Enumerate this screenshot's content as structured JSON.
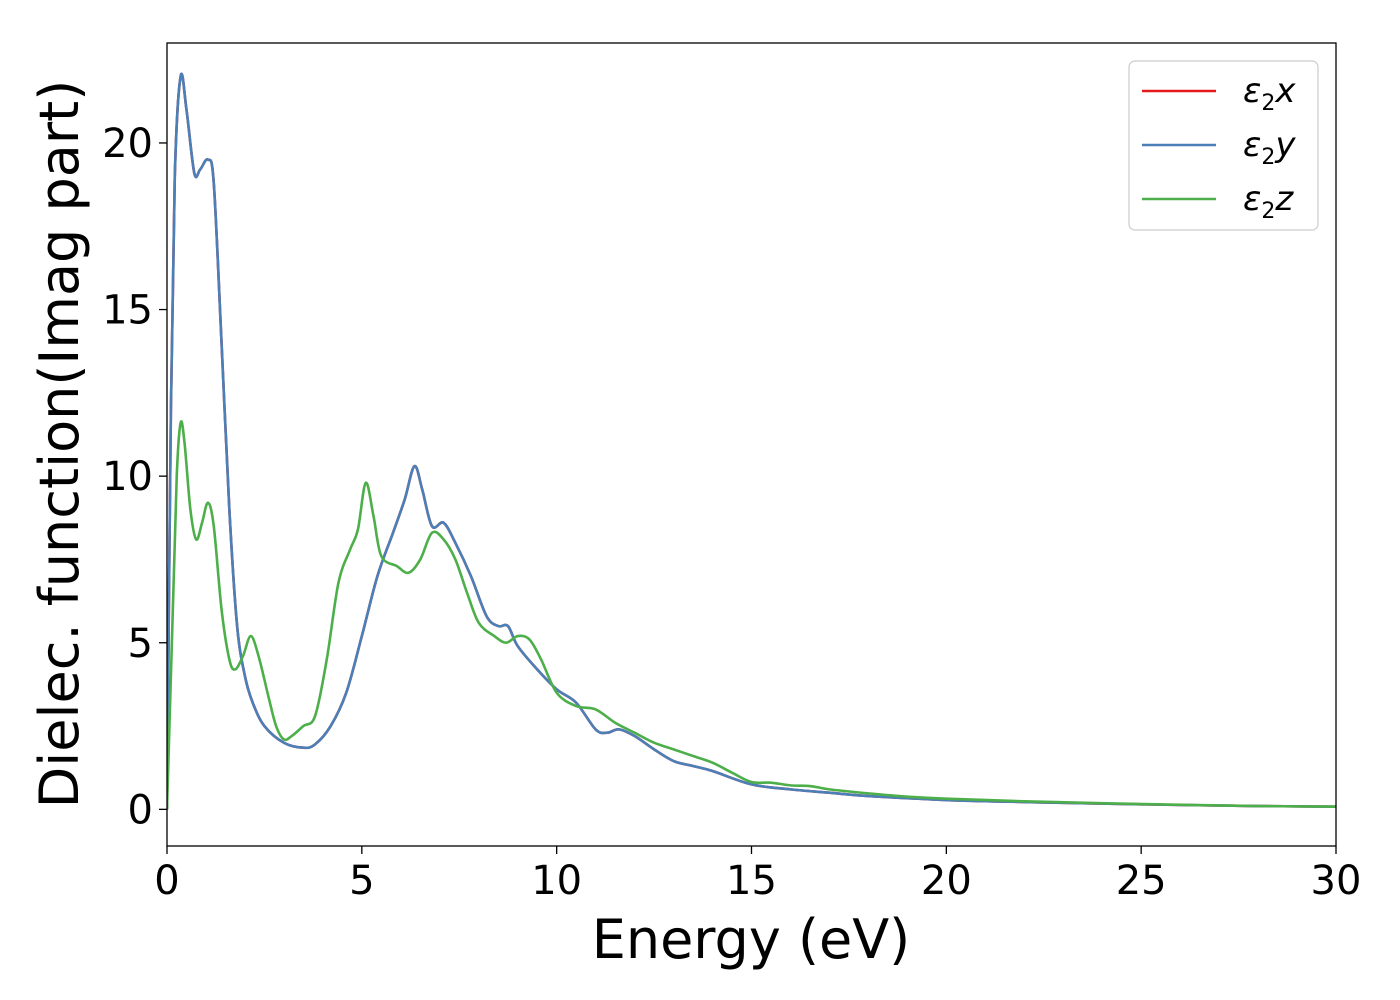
{
  "chart_data": {
    "type": "line",
    "title": "",
    "xlabel": "Energy (eV)",
    "ylabel": "Dielec. function(Imag part)",
    "xlim": [
      0,
      30
    ],
    "ylim": [
      -1.1,
      23
    ],
    "x_ticks": [
      "0",
      "5",
      "10",
      "15",
      "20",
      "25",
      "30"
    ],
    "y_ticks": [
      "0",
      "5",
      "10",
      "15",
      "20"
    ],
    "x_tick_values": [
      0,
      5,
      10,
      15,
      20,
      25,
      30
    ],
    "y_tick_values": [
      0,
      5,
      10,
      15,
      20
    ],
    "grid": false,
    "legend_position": "top-right",
    "series": [
      {
        "name": "ε2x",
        "symbol": "ε",
        "sub": "2",
        "suffix": "x",
        "color": "#e41a1c",
        "points": [
          [
            0,
            0
          ],
          [
            0.1,
            12
          ],
          [
            0.2,
            19
          ],
          [
            0.35,
            22
          ],
          [
            0.5,
            21
          ],
          [
            0.7,
            19.1
          ],
          [
            0.85,
            19.2
          ],
          [
            1.05,
            19.5
          ],
          [
            1.2,
            18.8
          ],
          [
            1.4,
            14
          ],
          [
            1.6,
            9
          ],
          [
            1.8,
            5.5
          ],
          [
            2.0,
            4
          ],
          [
            2.2,
            3.2
          ],
          [
            2.5,
            2.5
          ],
          [
            3.0,
            2
          ],
          [
            3.5,
            1.85
          ],
          [
            3.8,
            1.95
          ],
          [
            4.2,
            2.5
          ],
          [
            4.6,
            3.5
          ],
          [
            5.0,
            5.2
          ],
          [
            5.4,
            7
          ],
          [
            5.8,
            8.3
          ],
          [
            6.1,
            9.3
          ],
          [
            6.35,
            10.3
          ],
          [
            6.55,
            9.6
          ],
          [
            6.8,
            8.5
          ],
          [
            7.1,
            8.6
          ],
          [
            7.4,
            8
          ],
          [
            7.8,
            7
          ],
          [
            8.2,
            5.8
          ],
          [
            8.5,
            5.5
          ],
          [
            8.75,
            5.5
          ],
          [
            9.0,
            4.9
          ],
          [
            9.5,
            4.2
          ],
          [
            10.0,
            3.6
          ],
          [
            10.5,
            3.2
          ],
          [
            11.0,
            2.4
          ],
          [
            11.3,
            2.3
          ],
          [
            11.6,
            2.4
          ],
          [
            12.0,
            2.2
          ],
          [
            12.5,
            1.8
          ],
          [
            13.0,
            1.45
          ],
          [
            13.5,
            1.3
          ],
          [
            14.0,
            1.15
          ],
          [
            15.0,
            0.75
          ],
          [
            16.0,
            0.6
          ],
          [
            17.0,
            0.5
          ],
          [
            18.0,
            0.4
          ],
          [
            20.0,
            0.28
          ],
          [
            22.0,
            0.22
          ],
          [
            25.0,
            0.15
          ],
          [
            28.0,
            0.1
          ],
          [
            30.0,
            0.08
          ]
        ]
      },
      {
        "name": "ε2y",
        "symbol": "ε",
        "sub": "2",
        "suffix": "y",
        "color": "#4a7fb8",
        "points": [
          [
            0,
            0
          ],
          [
            0.1,
            12
          ],
          [
            0.2,
            19
          ],
          [
            0.35,
            22
          ],
          [
            0.5,
            21
          ],
          [
            0.7,
            19.1
          ],
          [
            0.85,
            19.2
          ],
          [
            1.05,
            19.5
          ],
          [
            1.2,
            18.8
          ],
          [
            1.4,
            14
          ],
          [
            1.6,
            9
          ],
          [
            1.8,
            5.5
          ],
          [
            2.0,
            4
          ],
          [
            2.2,
            3.2
          ],
          [
            2.5,
            2.5
          ],
          [
            3.0,
            2
          ],
          [
            3.5,
            1.85
          ],
          [
            3.8,
            1.95
          ],
          [
            4.2,
            2.5
          ],
          [
            4.6,
            3.5
          ],
          [
            5.0,
            5.2
          ],
          [
            5.4,
            7
          ],
          [
            5.8,
            8.3
          ],
          [
            6.1,
            9.3
          ],
          [
            6.35,
            10.3
          ],
          [
            6.55,
            9.6
          ],
          [
            6.8,
            8.5
          ],
          [
            7.1,
            8.6
          ],
          [
            7.4,
            8
          ],
          [
            7.8,
            7
          ],
          [
            8.2,
            5.8
          ],
          [
            8.5,
            5.5
          ],
          [
            8.75,
            5.5
          ],
          [
            9.0,
            4.9
          ],
          [
            9.5,
            4.2
          ],
          [
            10.0,
            3.6
          ],
          [
            10.5,
            3.2
          ],
          [
            11.0,
            2.4
          ],
          [
            11.3,
            2.3
          ],
          [
            11.6,
            2.4
          ],
          [
            12.0,
            2.2
          ],
          [
            12.5,
            1.8
          ],
          [
            13.0,
            1.45
          ],
          [
            13.5,
            1.3
          ],
          [
            14.0,
            1.15
          ],
          [
            15.0,
            0.75
          ],
          [
            16.0,
            0.6
          ],
          [
            17.0,
            0.5
          ],
          [
            18.0,
            0.4
          ],
          [
            20.0,
            0.28
          ],
          [
            22.0,
            0.22
          ],
          [
            25.0,
            0.15
          ],
          [
            28.0,
            0.1
          ],
          [
            30.0,
            0.08
          ]
        ]
      },
      {
        "name": "ε2z",
        "symbol": "ε",
        "sub": "2",
        "suffix": "z",
        "color": "#4daf4a",
        "points": [
          [
            0,
            0
          ],
          [
            0.15,
            6
          ],
          [
            0.25,
            10
          ],
          [
            0.35,
            11.6
          ],
          [
            0.45,
            11
          ],
          [
            0.6,
            9
          ],
          [
            0.75,
            8.1
          ],
          [
            0.9,
            8.6
          ],
          [
            1.05,
            9.2
          ],
          [
            1.2,
            8.5
          ],
          [
            1.4,
            6
          ],
          [
            1.6,
            4.5
          ],
          [
            1.75,
            4.2
          ],
          [
            1.95,
            4.6
          ],
          [
            2.15,
            5.2
          ],
          [
            2.35,
            4.6
          ],
          [
            2.6,
            3.4
          ],
          [
            2.8,
            2.5
          ],
          [
            3.0,
            2.1
          ],
          [
            3.2,
            2.2
          ],
          [
            3.5,
            2.5
          ],
          [
            3.8,
            2.8
          ],
          [
            4.1,
            4.5
          ],
          [
            4.4,
            6.8
          ],
          [
            4.7,
            7.8
          ],
          [
            4.9,
            8.4
          ],
          [
            5.1,
            9.8
          ],
          [
            5.3,
            8.8
          ],
          [
            5.5,
            7.6
          ],
          [
            5.9,
            7.3
          ],
          [
            6.2,
            7.1
          ],
          [
            6.5,
            7.5
          ],
          [
            6.8,
            8.3
          ],
          [
            7.1,
            8.1
          ],
          [
            7.4,
            7.5
          ],
          [
            7.7,
            6.5
          ],
          [
            8.0,
            5.6
          ],
          [
            8.4,
            5.2
          ],
          [
            8.7,
            5
          ],
          [
            9.0,
            5.2
          ],
          [
            9.3,
            5.1
          ],
          [
            9.6,
            4.5
          ],
          [
            10.0,
            3.5
          ],
          [
            10.5,
            3.1
          ],
          [
            11.0,
            3
          ],
          [
            11.5,
            2.6
          ],
          [
            12.0,
            2.3
          ],
          [
            12.5,
            2
          ],
          [
            13.0,
            1.8
          ],
          [
            13.5,
            1.6
          ],
          [
            14.0,
            1.4
          ],
          [
            14.5,
            1.1
          ],
          [
            15.0,
            0.82
          ],
          [
            15.5,
            0.8
          ],
          [
            16.0,
            0.72
          ],
          [
            16.5,
            0.7
          ],
          [
            17.0,
            0.6
          ],
          [
            18.0,
            0.48
          ],
          [
            19.0,
            0.38
          ],
          [
            20.0,
            0.32
          ],
          [
            22.0,
            0.24
          ],
          [
            25.0,
            0.16
          ],
          [
            28.0,
            0.1
          ],
          [
            30.0,
            0.08
          ]
        ]
      }
    ]
  }
}
